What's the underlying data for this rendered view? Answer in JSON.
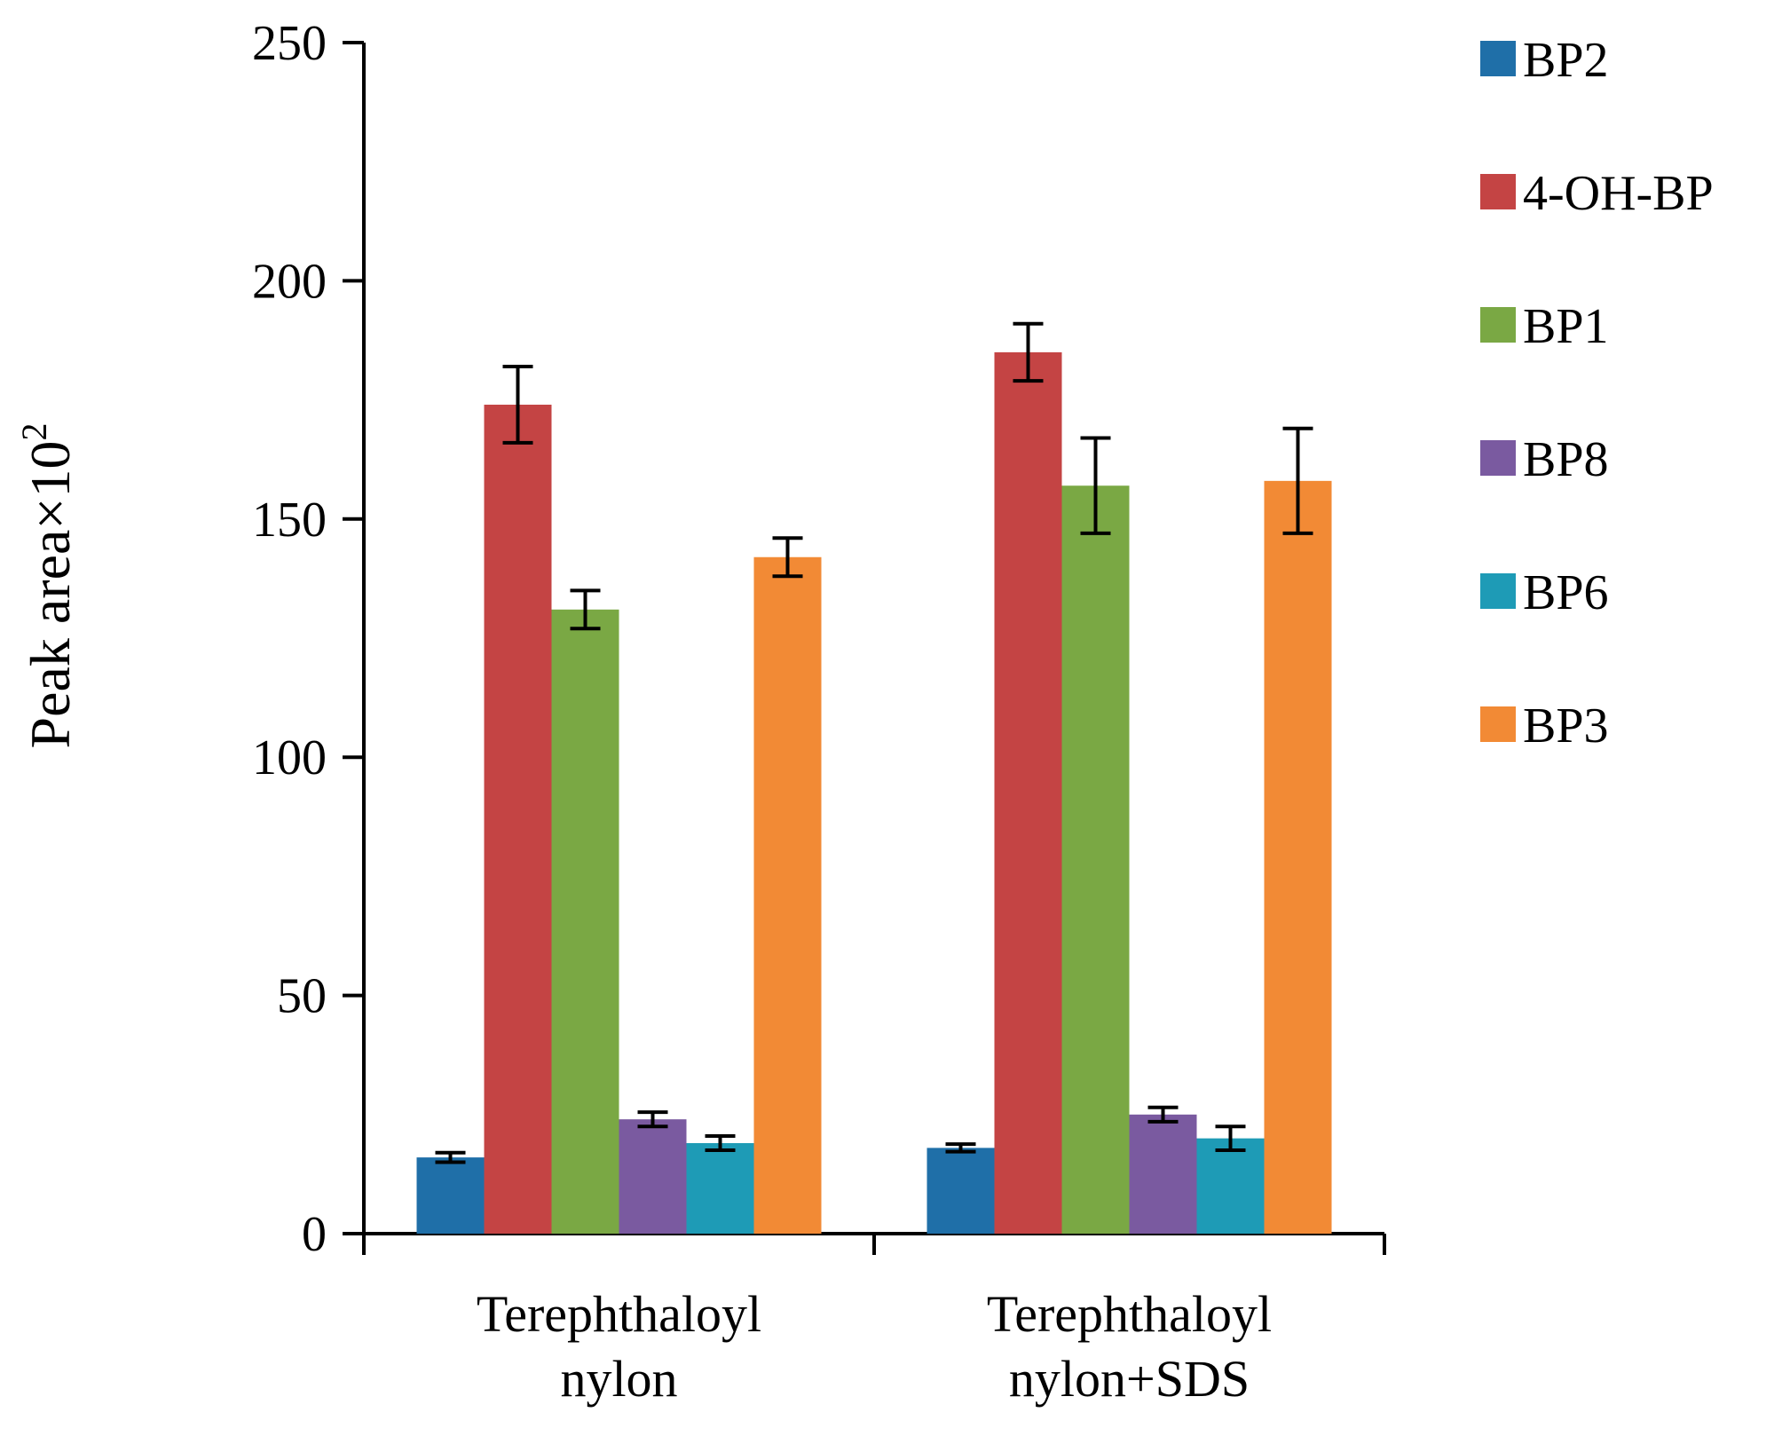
{
  "chart_data": {
    "type": "bar",
    "title": "",
    "xlabel": "",
    "ylabel": "Peak area×10",
    "ylabel_superscript": "2",
    "ylim": [
      0,
      250
    ],
    "yticks": [
      "0",
      "50",
      "100",
      "150",
      "200",
      "250"
    ],
    "categories": [
      {
        "line1": "Terephthaloyl",
        "line2": "nylon"
      },
      {
        "line1": "Terephthaloyl",
        "line2": "nylon+SDS"
      }
    ],
    "series": [
      {
        "name": "BP2",
        "color": "#1f6fa8",
        "values": [
          16,
          18
        ],
        "errors": [
          1,
          0.8
        ]
      },
      {
        "name": "4-OH-BP",
        "color": "#c44444",
        "values": [
          174,
          185
        ],
        "errors": [
          8,
          6
        ]
      },
      {
        "name": "BP1",
        "color": "#7aa844",
        "values": [
          131,
          157
        ],
        "errors": [
          4,
          10
        ]
      },
      {
        "name": "BP8",
        "color": "#7a5aa0",
        "values": [
          24,
          25
        ],
        "errors": [
          1.5,
          1.5
        ]
      },
      {
        "name": "BP6",
        "color": "#1e9bb6",
        "values": [
          19,
          20
        ],
        "errors": [
          1.5,
          2.5
        ]
      },
      {
        "name": "BP3",
        "color": "#f28a35",
        "values": [
          142,
          158
        ],
        "errors": [
          4,
          11
        ]
      }
    ],
    "legend_position": "right"
  }
}
